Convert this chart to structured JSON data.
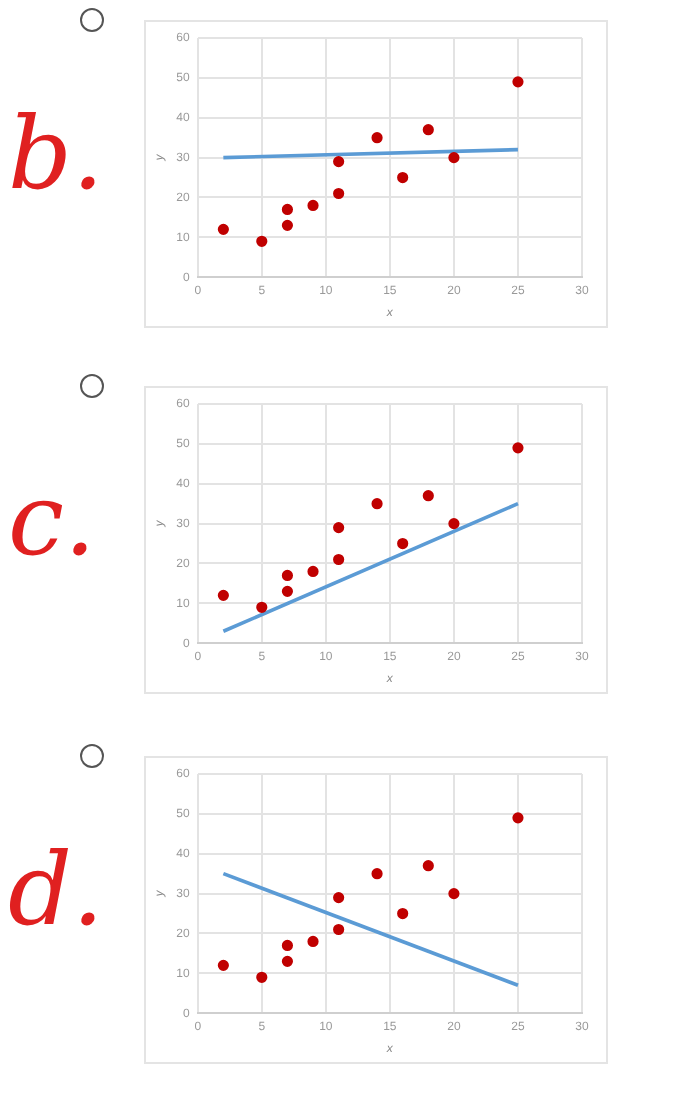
{
  "chart_data": [
    {
      "type": "scatter",
      "xlabel": "x",
      "ylabel": "y",
      "annotations": [
        "b."
      ],
      "xlim": [
        0,
        30
      ],
      "xticks": [
        0,
        5,
        10,
        15,
        20,
        25,
        30
      ],
      "ylim": [
        0,
        60
      ],
      "yticks": [
        0,
        10,
        20,
        30,
        40,
        50,
        60
      ],
      "grid": true,
      "legend": false,
      "series": [
        {
          "color": "#c00000",
          "marker": "circle",
          "x": [
            2,
            5,
            7,
            7,
            9,
            11,
            11,
            14,
            16,
            18,
            20,
            25
          ],
          "values": [
            12,
            9,
            13,
            17,
            18,
            21,
            29,
            35,
            25,
            37,
            30,
            49
          ]
        },
        {
          "type": "line",
          "color": "#5b9bd5",
          "marker": "none",
          "x": [
            2,
            25
          ],
          "values": [
            30,
            32
          ]
        }
      ]
    },
    {
      "type": "scatter",
      "xlabel": "x",
      "ylabel": "y",
      "annotations": [
        "c."
      ],
      "xlim": [
        0,
        30
      ],
      "xticks": [
        0,
        5,
        10,
        15,
        20,
        25,
        30
      ],
      "ylim": [
        0,
        60
      ],
      "yticks": [
        0,
        10,
        20,
        30,
        40,
        50,
        60
      ],
      "grid": true,
      "legend": false,
      "series": [
        {
          "color": "#c00000",
          "marker": "circle",
          "x": [
            2,
            5,
            7,
            7,
            9,
            11,
            11,
            14,
            16,
            18,
            20,
            25
          ],
          "values": [
            12,
            9,
            13,
            17,
            18,
            21,
            29,
            35,
            25,
            37,
            30,
            49
          ]
        },
        {
          "type": "line",
          "color": "#5b9bd5",
          "marker": "none",
          "x": [
            2,
            25
          ],
          "values": [
            3,
            35
          ]
        }
      ]
    },
    {
      "type": "scatter",
      "xlabel": "x",
      "ylabel": "y",
      "annotations": [
        "d."
      ],
      "xlim": [
        0,
        30
      ],
      "xticks": [
        0,
        5,
        10,
        15,
        20,
        25,
        30
      ],
      "ylim": [
        0,
        60
      ],
      "yticks": [
        0,
        10,
        20,
        30,
        40,
        50,
        60
      ],
      "grid": true,
      "legend": false,
      "series": [
        {
          "color": "#c00000",
          "marker": "circle",
          "x": [
            2,
            5,
            7,
            7,
            9,
            11,
            11,
            14,
            16,
            18,
            20,
            25
          ],
          "values": [
            12,
            9,
            13,
            17,
            18,
            21,
            29,
            35,
            25,
            37,
            30,
            49
          ]
        },
        {
          "type": "line",
          "color": "#5b9bd5",
          "marker": "none",
          "x": [
            2,
            25
          ],
          "values": [
            35,
            7
          ]
        }
      ]
    }
  ]
}
